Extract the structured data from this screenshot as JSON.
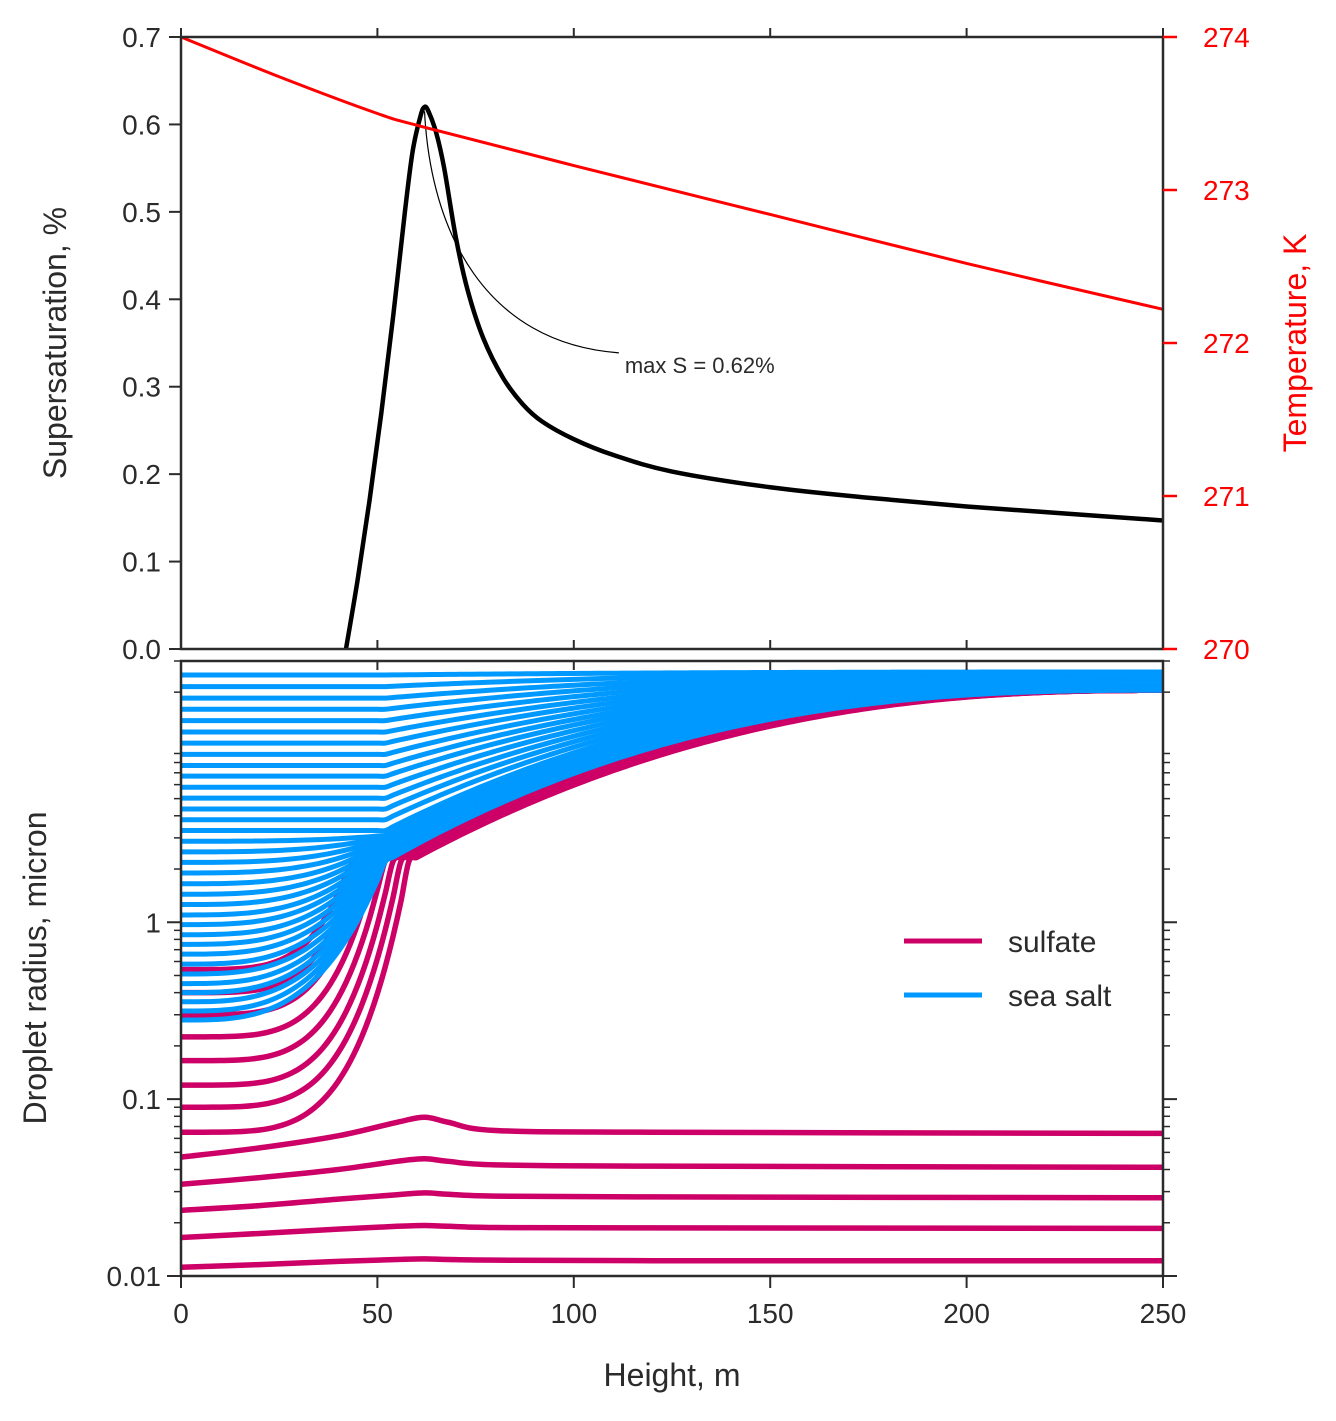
{
  "chart_data": [
    {
      "type": "line",
      "panel": "top",
      "xlabel": "",
      "ylabel": "Supersaturation, %",
      "y2label": "Temperature, K",
      "xlim": [
        0,
        250
      ],
      "ylim": [
        0.0,
        0.7
      ],
      "y2lim": [
        270,
        274
      ],
      "xticks": [
        "0",
        "50",
        "100",
        "150",
        "200",
        "250"
      ],
      "yticks": [
        "0.0",
        "0.1",
        "0.2",
        "0.3",
        "0.4",
        "0.5",
        "0.6",
        "0.7"
      ],
      "y2ticks": [
        "270",
        "271",
        "272",
        "273",
        "274"
      ],
      "grid": false,
      "annotation": "max S = 0.62%",
      "annotation_point": {
        "x": 62,
        "y": 0.615
      },
      "annotation_text_at": {
        "x": 113,
        "y": 0.325
      },
      "series": [
        {
          "axis": "left",
          "color": "#000000",
          "x": [
            42,
            45,
            48,
            51,
            54,
            57,
            59,
            61,
            62,
            63,
            65,
            67,
            70,
            73,
            77,
            82,
            87,
            92,
            100,
            110,
            125,
            150,
            175,
            200,
            225,
            250
          ],
          "y": [
            0.0,
            0.08,
            0.17,
            0.27,
            0.38,
            0.5,
            0.57,
            0.61,
            0.62,
            0.615,
            0.59,
            0.55,
            0.47,
            0.41,
            0.355,
            0.31,
            0.28,
            0.26,
            0.24,
            0.222,
            0.203,
            0.185,
            0.173,
            0.163,
            0.155,
            0.147
          ]
        },
        {
          "axis": "right",
          "color": "#ff0000",
          "x": [
            0,
            25,
            50,
            62,
            100,
            150,
            200,
            250
          ],
          "y": [
            274.0,
            273.74,
            273.5,
            273.41,
            273.16,
            272.84,
            272.52,
            272.22
          ]
        }
      ]
    },
    {
      "type": "line",
      "panel": "bottom",
      "xlabel": "Height, m",
      "ylabel": "Droplet radius, micron",
      "xlim": [
        0,
        250
      ],
      "ylim": [
        0.01,
        30
      ],
      "yscale": "log",
      "xticks": [
        "0",
        "50",
        "100",
        "150",
        "200",
        "250"
      ],
      "yticks": [
        "0.01",
        "0.1",
        "1"
      ],
      "grid": false,
      "legend": {
        "position": "right",
        "entries": [
          {
            "name": "sulfate",
            "color": "#cc0066"
          },
          {
            "name": "sea salt",
            "color": "#0099ff"
          }
        ]
      },
      "sea_salt": {
        "color": "#0099ff",
        "start_radius": [
          0.28,
          0.315,
          0.355,
          0.4,
          0.45,
          0.51,
          0.58,
          0.66,
          0.75,
          0.85,
          0.97,
          1.1,
          1.26,
          1.44,
          1.65,
          1.9,
          2.18,
          2.5,
          2.87,
          3.3,
          3.8,
          4.37,
          5.03,
          5.8,
          6.7,
          7.7,
          8.9,
          10.3,
          11.9,
          13.8,
          16.0,
          18.5,
          21.5,
          25.0
        ],
        "end_radius_range": [
          20.5,
          26.0
        ]
      },
      "sulfate_activated": {
        "color": "#cc0066",
        "start_radius": [
          0.065,
          0.09,
          0.12,
          0.165,
          0.225,
          0.3,
          0.4,
          0.54
        ],
        "end_radius": 20.5
      },
      "sulfate_unactivated": {
        "color": "#cc0066",
        "x": [
          0,
          20,
          40,
          55,
          62,
          68,
          80,
          120,
          250
        ],
        "series": [
          {
            "y": [
              0.047,
              0.053,
              0.062,
              0.074,
              0.079,
              0.074,
              0.0665,
              0.065,
              0.064
            ]
          },
          {
            "y": [
              0.033,
              0.036,
              0.04,
              0.0445,
              0.046,
              0.0445,
              0.0425,
              0.0418,
              0.0412
            ]
          },
          {
            "y": [
              0.0235,
              0.025,
              0.0272,
              0.0288,
              0.0295,
              0.029,
              0.0283,
              0.028,
              0.0277
            ]
          },
          {
            "y": [
              0.0165,
              0.0174,
              0.0184,
              0.0191,
              0.0193,
              0.0191,
              0.0188,
              0.0187,
              0.0186
            ]
          },
          {
            "y": [
              0.0112,
              0.0116,
              0.0121,
              0.0124,
              0.0125,
              0.0124,
              0.0123,
              0.0122,
              0.0122
            ]
          }
        ]
      }
    }
  ]
}
